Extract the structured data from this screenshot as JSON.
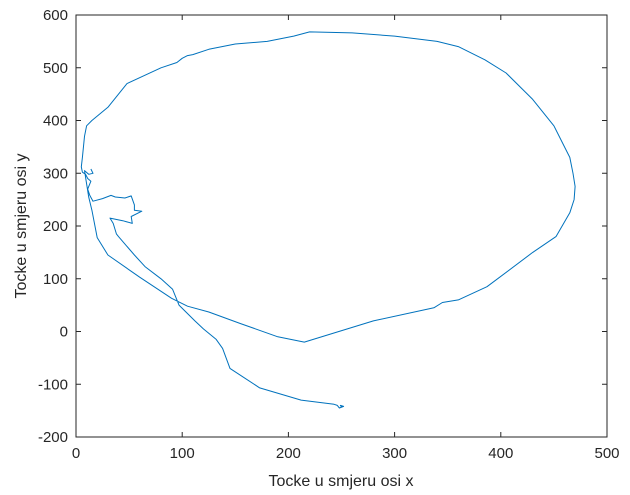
{
  "chart_data": {
    "type": "line",
    "title": "",
    "xlabel": "Tocke u smjeru osi x",
    "ylabel": "Tocke u smjeru osi y",
    "xlim": [
      0,
      500
    ],
    "ylim": [
      -200,
      600
    ],
    "xticks": [
      0,
      100,
      200,
      300,
      400,
      500
    ],
    "xtick_labels": [
      "0",
      "100",
      "200",
      "300",
      "400",
      "500"
    ],
    "yticks": [
      -200,
      -100,
      0,
      100,
      200,
      300,
      400,
      500,
      600
    ],
    "ytick_labels": [
      "-200",
      "-100",
      "0",
      "100",
      "200",
      "300",
      "400",
      "500",
      "600"
    ],
    "grid": false,
    "line_color": "#0072BD",
    "axis_color": "#262626",
    "series": [
      {
        "x": [
          250,
          249,
          252,
          248,
          246,
          243,
          212,
          173,
          145,
          138,
          132,
          120,
          112,
          97,
          91,
          80,
          65,
          55,
          40,
          38,
          35,
          32,
          44,
          53,
          52,
          62,
          55,
          55,
          52,
          46,
          37,
          33,
          25,
          16,
          13,
          11,
          14,
          11,
          9,
          6,
          5,
          6,
          8,
          10,
          15,
          30,
          48,
          80,
          95,
          100,
          105,
          110,
          125,
          150,
          180,
          205,
          220,
          260,
          300,
          340,
          360,
          385,
          405,
          430,
          450,
          460,
          465,
          468,
          470,
          469,
          465,
          452,
          430,
          387,
          360,
          345,
          337,
          280,
          215,
          190,
          155,
          125,
          105,
          90,
          60,
          30,
          20,
          15,
          12,
          10,
          8,
          12,
          16,
          14
        ],
        "y": [
          -143,
          -140,
          -142,
          -145,
          -140,
          -138,
          -130,
          -107,
          -70,
          -32,
          -15,
          5,
          20,
          50,
          80,
          100,
          123,
          145,
          180,
          185,
          205,
          215,
          210,
          205,
          218,
          228,
          230,
          240,
          257,
          253,
          255,
          258,
          252,
          247,
          258,
          270,
          285,
          290,
          298,
          302,
          312,
          330,
          370,
          390,
          400,
          425,
          470,
          500,
          510,
          518,
          523,
          525,
          535,
          545,
          550,
          560,
          568,
          566,
          560,
          550,
          540,
          515,
          490,
          440,
          390,
          350,
          330,
          300,
          275,
          250,
          225,
          180,
          150,
          85,
          60,
          55,
          45,
          20,
          -20,
          -10,
          15,
          37,
          48,
          63,
          103,
          145,
          178,
          230,
          255,
          280,
          305,
          298,
          300,
          308
        ]
      }
    ]
  }
}
